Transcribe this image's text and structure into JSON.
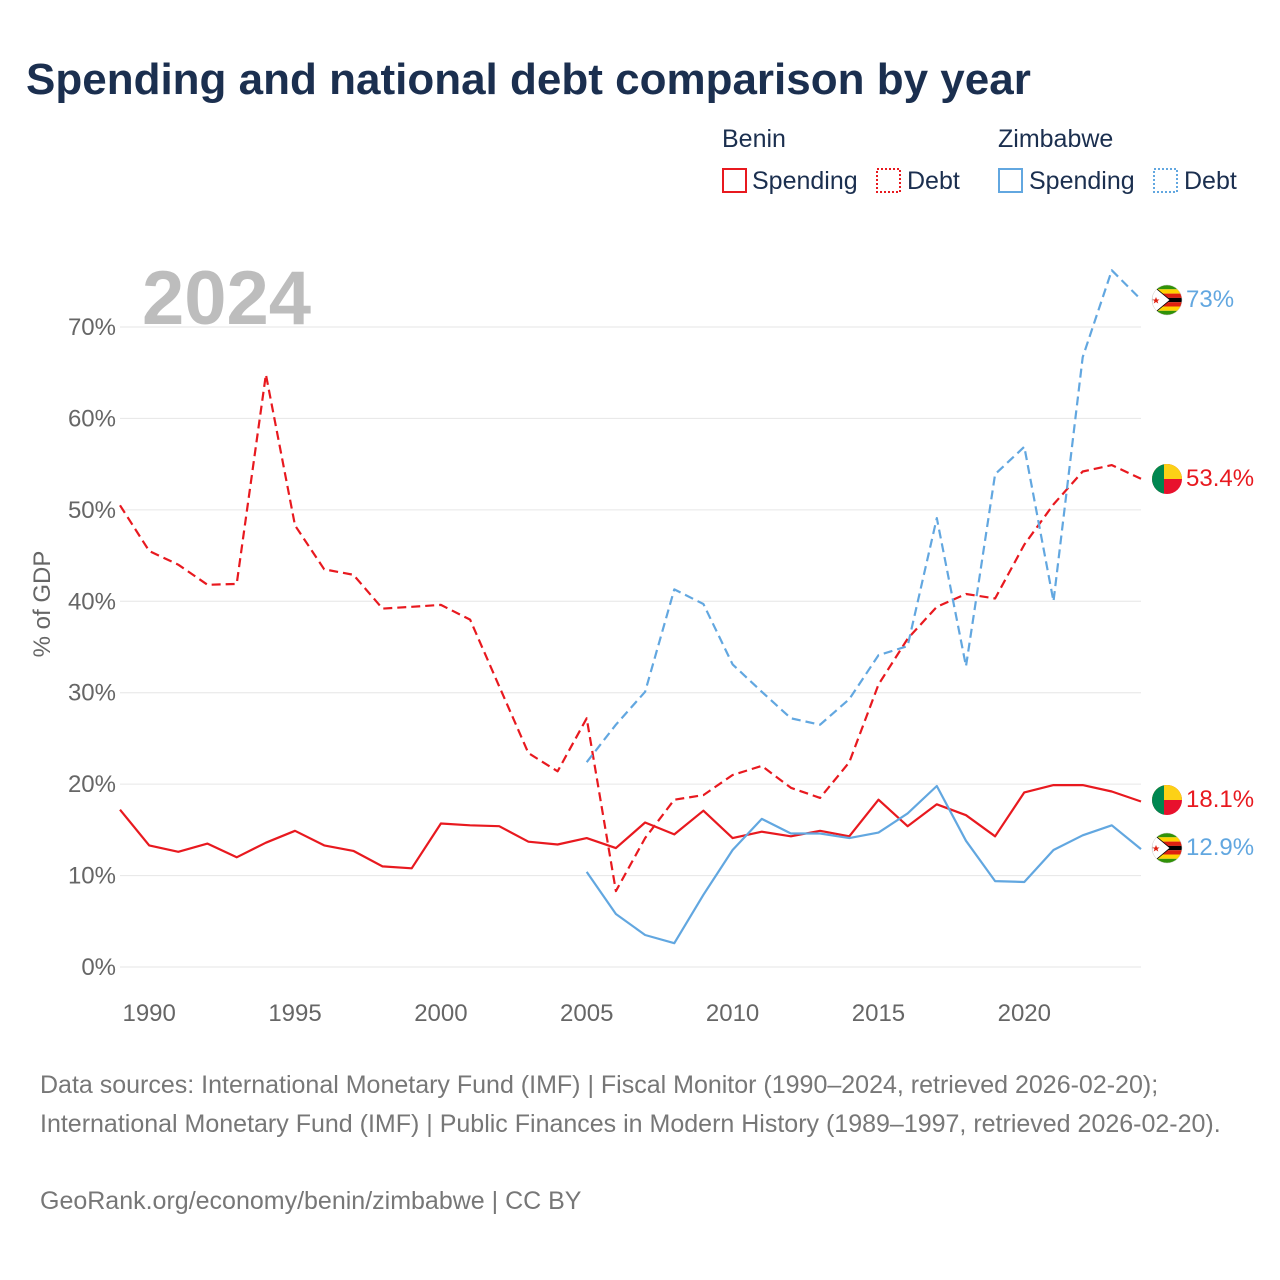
{
  "title": "Spending and national debt comparison by year",
  "year_watermark": "2024",
  "colors": {
    "benin": "#e8191f",
    "zimbabwe": "#62a7e0",
    "grid": "#e6e6e6",
    "title": "#1b2f4f"
  },
  "legend": {
    "groups": [
      {
        "name": "Benin",
        "items": [
          "Spending",
          "Debt"
        ]
      },
      {
        "name": "Zimbabwe",
        "items": [
          "Spending",
          "Debt"
        ]
      }
    ]
  },
  "chart_data": {
    "type": "line",
    "title": "Spending and national debt comparison by year",
    "xlabel": "",
    "ylabel": "% of GDP",
    "xlim": [
      1989,
      2024
    ],
    "ylim": [
      0,
      77
    ],
    "x_ticks": [
      1990,
      1995,
      2000,
      2005,
      2010,
      2015,
      2020
    ],
    "y_ticks": [
      0,
      10,
      20,
      30,
      40,
      50,
      60,
      70
    ],
    "grid": true,
    "legend_position": "top-right",
    "series": [
      {
        "name": "Benin Spending",
        "country": "Benin",
        "measure": "Spending",
        "style": "solid",
        "x": [
          1989,
          1990,
          1991,
          1992,
          1993,
          1994,
          1995,
          1996,
          1997,
          1998,
          1999,
          2000,
          2001,
          2002,
          2003,
          2004,
          2005,
          2006,
          2007,
          2008,
          2009,
          2010,
          2011,
          2012,
          2013,
          2014,
          2015,
          2016,
          2017,
          2018,
          2019,
          2020,
          2021,
          2022,
          2023,
          2024
        ],
        "values": [
          17.2,
          13.3,
          12.6,
          13.5,
          12.0,
          13.6,
          14.9,
          13.3,
          12.7,
          11.0,
          10.8,
          15.7,
          15.5,
          15.4,
          13.7,
          13.4,
          14.1,
          13.0,
          15.8,
          14.5,
          17.1,
          14.1,
          14.8,
          14.3,
          14.9,
          14.3,
          18.3,
          15.4,
          17.8,
          16.6,
          14.3,
          19.1,
          19.9,
          19.9,
          19.2,
          18.1
        ],
        "end_label": "18.1%"
      },
      {
        "name": "Benin Debt",
        "country": "Benin",
        "measure": "Debt",
        "style": "dashed",
        "x": [
          1989,
          1990,
          1991,
          1992,
          1993,
          1994,
          1995,
          1996,
          1997,
          1998,
          1999,
          2000,
          2001,
          2002,
          2003,
          2004,
          2005,
          2006,
          2007,
          2008,
          2009,
          2010,
          2011,
          2012,
          2013,
          2014,
          2015,
          2016,
          2017,
          2018,
          2019,
          2020,
          2021,
          2022,
          2023,
          2024
        ],
        "values": [
          50.5,
          45.5,
          44.0,
          41.8,
          41.9,
          64.8,
          48.3,
          43.5,
          42.9,
          39.2,
          39.4,
          39.6,
          38.0,
          30.7,
          23.4,
          21.4,
          27.2,
          8.3,
          14.1,
          18.3,
          18.8,
          21.0,
          22.0,
          19.6,
          18.5,
          22.4,
          30.9,
          35.9,
          39.4,
          40.8,
          40.3,
          46.2,
          50.6,
          54.2,
          54.9,
          53.4
        ],
        "end_label": "53.4%"
      },
      {
        "name": "Zimbabwe Spending",
        "country": "Zimbabwe",
        "measure": "Spending",
        "style": "solid",
        "x": [
          2005,
          2006,
          2007,
          2008,
          2009,
          2010,
          2011,
          2012,
          2013,
          2014,
          2015,
          2016,
          2017,
          2018,
          2019,
          2020,
          2021,
          2022,
          2023,
          2024
        ],
        "values": [
          10.4,
          5.8,
          3.5,
          2.6,
          7.9,
          12.8,
          16.2,
          14.6,
          14.6,
          14.1,
          14.7,
          16.8,
          19.8,
          13.8,
          9.4,
          9.3,
          12.8,
          14.4,
          15.5,
          12.9
        ],
        "end_label": "12.9%"
      },
      {
        "name": "Zimbabwe Debt",
        "country": "Zimbabwe",
        "measure": "Debt",
        "style": "dashed",
        "x": [
          2005,
          2006,
          2007,
          2008,
          2009,
          2010,
          2011,
          2012,
          2013,
          2014,
          2015,
          2016,
          2017,
          2018,
          2019,
          2020,
          2021,
          2022,
          2023,
          2024
        ],
        "values": [
          22.4,
          26.5,
          30.1,
          41.3,
          39.7,
          33.1,
          30.1,
          27.2,
          26.5,
          29.3,
          34.1,
          35.1,
          49.1,
          32.9,
          53.9,
          56.9,
          40.0,
          66.7,
          76.2,
          73.0
        ],
        "end_label": "73%"
      }
    ]
  },
  "footer": {
    "sources": "Data sources: International Monetary Fund (IMF) | Fiscal Monitor (1990–2024, retrieved 2026-02-20); International Monetary Fund (IMF) | Public Finances in Modern History (1989–1997, retrieved 2026-02-20).",
    "credit": "GeoRank.org/economy/benin/zimbabwe | CC BY"
  }
}
